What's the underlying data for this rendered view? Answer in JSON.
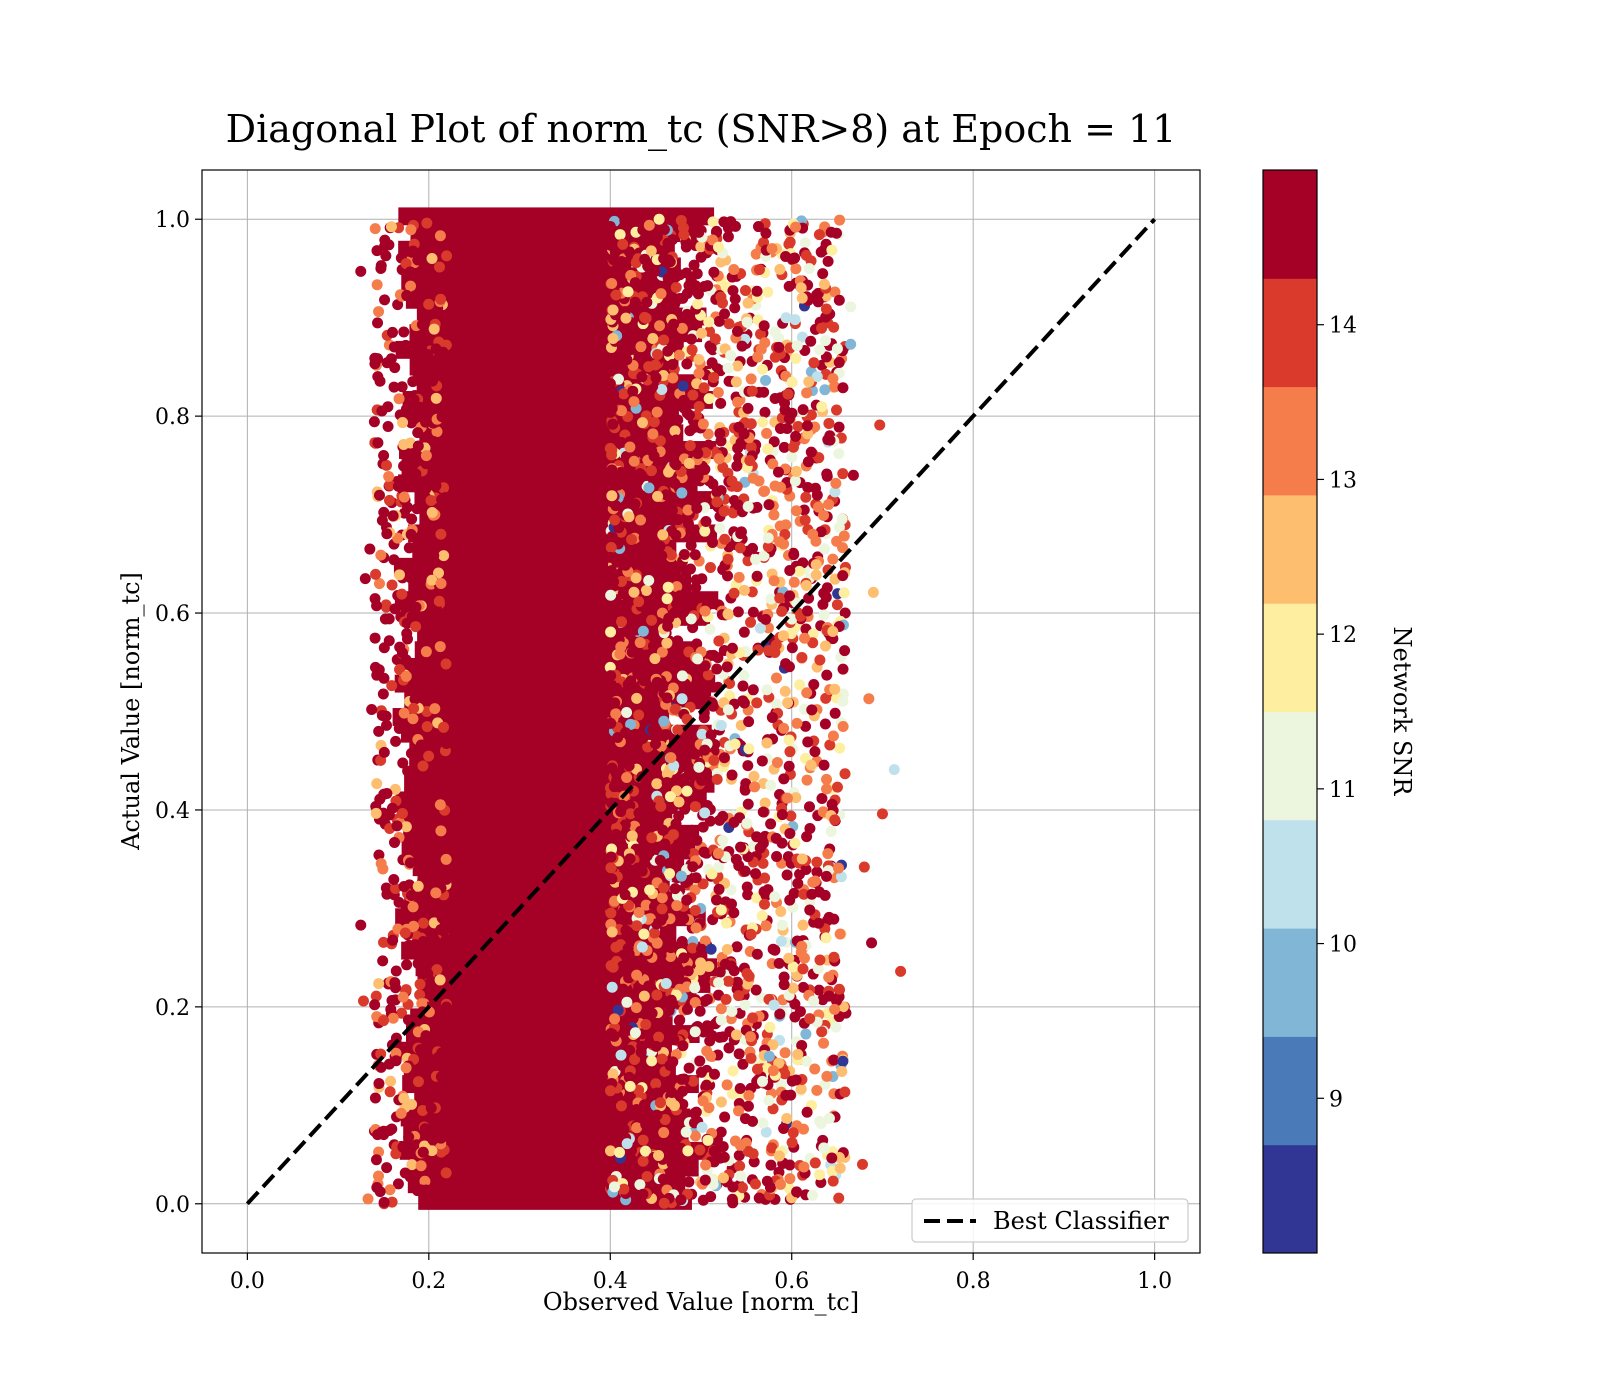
{
  "chart_data": {
    "type": "scatter",
    "title": "Diagonal Plot of norm_tc (SNR>8) at Epoch = 11",
    "xlabel": "Observed Value [norm_tc]",
    "ylabel": "Actual Value [norm_tc]",
    "xlim": [
      -0.05,
      1.05
    ],
    "ylim": [
      -0.05,
      1.05
    ],
    "xticks": [
      0.0,
      0.2,
      0.4,
      0.6,
      0.8,
      1.0
    ],
    "yticks": [
      0.0,
      0.2,
      0.4,
      0.6,
      0.8,
      1.0
    ],
    "xtick_labels": [
      "0.0",
      "0.2",
      "0.4",
      "0.6",
      "0.8",
      "1.0"
    ],
    "ytick_labels": [
      "0.0",
      "0.2",
      "0.4",
      "0.6",
      "0.8",
      "1.0"
    ],
    "grid": true,
    "legend": {
      "placement": "lower-right",
      "entries": [
        "Best Classifier"
      ]
    },
    "reference_line": {
      "name": "Best Classifier",
      "style": "dashed",
      "color": "#000000",
      "x": [
        0.0,
        1.0
      ],
      "y": [
        0.0,
        1.0
      ]
    },
    "scatter_extent": {
      "observed_dense_range": [
        0.2,
        0.4
      ],
      "observed_min": 0.12,
      "observed_max": 0.72,
      "actual_range": [
        0.0,
        1.0
      ]
    },
    "outliers": [
      {
        "x": 0.125,
        "y": 0.947,
        "snr": 14.5
      },
      {
        "x": 0.13,
        "y": 0.635,
        "snr": 14.5
      },
      {
        "x": 0.135,
        "y": 0.665,
        "snr": 14.5
      },
      {
        "x": 0.137,
        "y": 0.502,
        "snr": 14.5
      },
      {
        "x": 0.125,
        "y": 0.283,
        "snr": 14.5
      },
      {
        "x": 0.128,
        "y": 0.206,
        "snr": 13.7
      },
      {
        "x": 0.133,
        "y": 0.005,
        "snr": 13.2
      },
      {
        "x": 0.697,
        "y": 0.791,
        "snr": 13.7
      },
      {
        "x": 0.69,
        "y": 0.621,
        "snr": 12.5
      },
      {
        "x": 0.713,
        "y": 0.441,
        "snr": 10.4
      },
      {
        "x": 0.7,
        "y": 0.396,
        "snr": 13.7
      },
      {
        "x": 0.68,
        "y": 0.342,
        "snr": 13.7
      },
      {
        "x": 0.688,
        "y": 0.265,
        "snr": 14.5
      },
      {
        "x": 0.72,
        "y": 0.236,
        "snr": 13.7
      },
      {
        "x": 0.668,
        "y": 0.74,
        "snr": 14.5
      },
      {
        "x": 0.665,
        "y": 0.911,
        "snr": 11.2
      },
      {
        "x": 0.665,
        "y": 0.873,
        "snr": 9.4
      },
      {
        "x": 0.685,
        "y": 0.513,
        "snr": 13.2
      },
      {
        "x": 0.678,
        "y": 0.04,
        "snr": 13.7
      }
    ],
    "colorbar": {
      "label": "Network SNR",
      "range": [
        8,
        15
      ],
      "ticks": [
        9,
        10,
        11,
        12,
        13,
        14
      ],
      "tick_labels": [
        "9",
        "10",
        "11",
        "12",
        "13",
        "14"
      ],
      "colors": [
        "#313695",
        "#4575b4",
        "#74add1",
        "#abd9e9",
        "#e0f3f8",
        "#ffffbf",
        "#fee090",
        "#fdae61",
        "#f46d43",
        "#d73027",
        "#a50026"
      ],
      "bins": [
        {
          "from": 8.0,
          "to": 8.7,
          "color": "#313695"
        },
        {
          "from": 8.7,
          "to": 9.4,
          "color": "#4a7ab7"
        },
        {
          "from": 9.4,
          "to": 10.1,
          "color": "#82b6d6"
        },
        {
          "from": 10.1,
          "to": 10.8,
          "color": "#bfe1ec"
        },
        {
          "from": 10.8,
          "to": 11.5,
          "color": "#ecf5dd"
        },
        {
          "from": 11.5,
          "to": 12.2,
          "color": "#feeea0"
        },
        {
          "from": 12.2,
          "to": 12.9,
          "color": "#fdbe70"
        },
        {
          "from": 12.9,
          "to": 13.6,
          "color": "#f47d4b"
        },
        {
          "from": 13.6,
          "to": 14.3,
          "color": "#d93a2b"
        },
        {
          "from": 14.3,
          "to": 15.0,
          "color": "#a50026"
        }
      ]
    }
  }
}
